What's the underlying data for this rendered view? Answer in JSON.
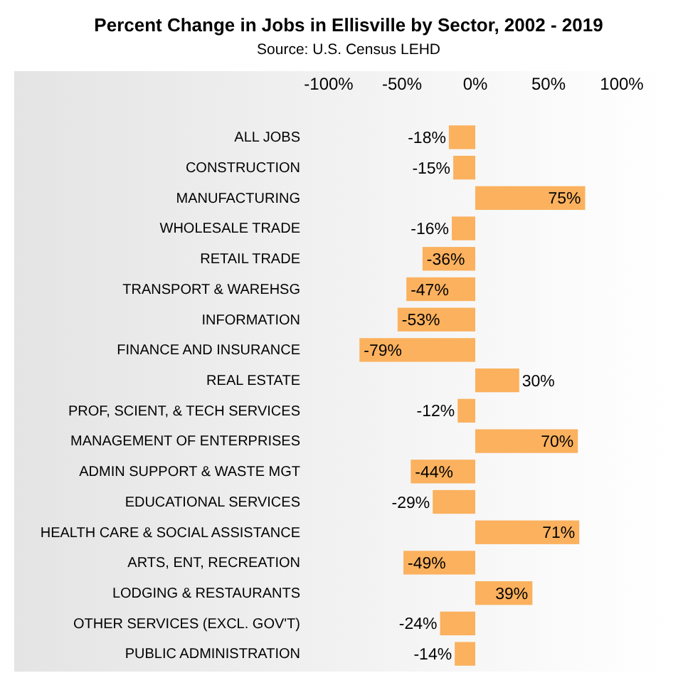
{
  "chart_data": {
    "type": "bar",
    "orientation": "horizontal",
    "title": "Percent Change in Jobs in Ellisville by Sector, 2002 - 2019",
    "annotations": [
      "Source:  U.S. Census LEHD"
    ],
    "categories": [
      "ALL JOBS",
      "CONSTRUCTION",
      "MANUFACTURING",
      "WHOLESALE TRADE",
      "RETAIL TRADE",
      "TRANSPORT & WAREHSG",
      "INFORMATION",
      "FINANCE AND INSURANCE",
      "REAL ESTATE",
      "PROF, SCIENT, & TECH SERVICES",
      "MANAGEMENT OF ENTERPRISES",
      "ADMIN SUPPORT & WASTE MGT",
      "EDUCATIONAL SERVICES",
      "HEALTH CARE & SOCIAL ASSISTANCE",
      "ARTS, ENT, RECREATION",
      "LODGING & RESTAURANTS",
      "OTHER SERVICES (EXCL. GOV'T)",
      "PUBLIC ADMINISTRATION"
    ],
    "values": [
      -18,
      -15,
      75,
      -16,
      -36,
      -47,
      -53,
      -79,
      30,
      -12,
      70,
      -44,
      -29,
      71,
      -49,
      39,
      -24,
      -14
    ],
    "value_labels": [
      "-18%",
      "-15%",
      "75%",
      "-16%",
      "-36%",
      "-47%",
      "-53%",
      "-79%",
      "30%",
      "-12%",
      "70%",
      "-44%",
      "-29%",
      "71%",
      "-49%",
      "39%",
      "-24%",
      "-14%"
    ],
    "color": "#fbb15e",
    "xlim": [
      -100,
      100
    ],
    "xticks": [
      {
        "value": -100,
        "label": "-100%"
      },
      {
        "value": -50,
        "label": "-50%"
      },
      {
        "value": 0,
        "label": "0%"
      },
      {
        "value": 50,
        "label": "50%"
      },
      {
        "value": 100,
        "label": "100%"
      }
    ],
    "grid": false
  }
}
